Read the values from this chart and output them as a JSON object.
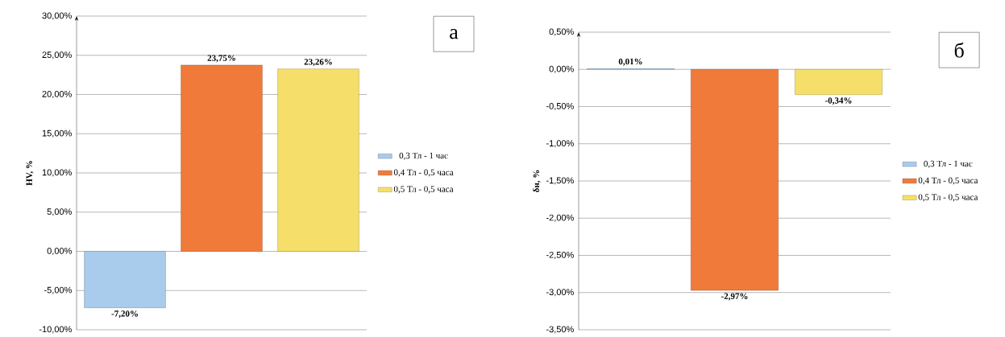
{
  "chart_data": [
    {
      "type": "bar",
      "ylabel": "HV, %",
      "categories": [
        null,
        null,
        null
      ],
      "series": [
        {
          "name": "0,3 Тл - 1 час",
          "color": "#a9cbec",
          "values": [
            -7.2,
            null,
            null
          ],
          "value_labels": [
            "-7,20%",
            null,
            null
          ]
        },
        {
          "name": "0,4 Тл - 0,5 часа",
          "color": "#f07a3a",
          "values": [
            null,
            23.75,
            null
          ],
          "value_labels": [
            null,
            "23,75%",
            null
          ]
        },
        {
          "name": "0,5 Тл - 0,5 часа",
          "color": "#f5df6a",
          "values": [
            null,
            null,
            23.26
          ],
          "value_labels": [
            null,
            null,
            "23,26%"
          ]
        }
      ],
      "ylim": [
        -10,
        30
      ],
      "yticks": [
        {
          "value": -10,
          "label": "-10,00%"
        },
        {
          "value": -5,
          "label": "-5,00%"
        },
        {
          "value": 0,
          "label": "0,00%"
        },
        {
          "value": 5,
          "label": "5,00%"
        },
        {
          "value": 10,
          "label": "10,00%"
        },
        {
          "value": 15,
          "label": "15,00%"
        },
        {
          "value": 20,
          "label": "20,00%"
        },
        {
          "value": 25,
          "label": "25,00%"
        },
        {
          "value": 30,
          "label": "30,00%"
        }
      ],
      "grid": "y",
      "legend": "right",
      "tick_labels": "y",
      "annotations": [
        "а"
      ]
    },
    {
      "type": "bar",
      "ylabel": "δн, %",
      "categories": [
        null,
        null,
        null
      ],
      "series": [
        {
          "name": "0,3 Тл - 1 час",
          "color": "#a9cbec",
          "values": [
            0.01,
            null,
            null
          ],
          "value_labels": [
            "0,01%",
            null,
            null
          ]
        },
        {
          "name": "0,4 Тл - 0,5 часа",
          "color": "#f07a3a",
          "values": [
            null,
            -2.97,
            null
          ],
          "value_labels": [
            null,
            "-2,97%",
            null
          ]
        },
        {
          "name": "0,5 Тл - 0,5 часа",
          "color": "#f5df6a",
          "values": [
            null,
            null,
            -0.34
          ],
          "value_labels": [
            null,
            null,
            "-0,34%"
          ]
        }
      ],
      "ylim": [
        -3.5,
        0.5
      ],
      "yticks": [
        {
          "value": -3.5,
          "label": "-3,50%"
        },
        {
          "value": -3,
          "label": "-3,00%"
        },
        {
          "value": -2.5,
          "label": "-2,50%"
        },
        {
          "value": -2,
          "label": "-2,00%"
        },
        {
          "value": -1.5,
          "label": "-1,50%"
        },
        {
          "value": -1,
          "label": "-1,00%"
        },
        {
          "value": -0.5,
          "label": "-0,50%"
        },
        {
          "value": 0,
          "label": "0,00%"
        },
        {
          "value": 0.5,
          "label": "0,50%"
        }
      ],
      "grid": "y",
      "legend": "right",
      "tick_labels": "y",
      "annotations": [
        "б"
      ]
    }
  ]
}
